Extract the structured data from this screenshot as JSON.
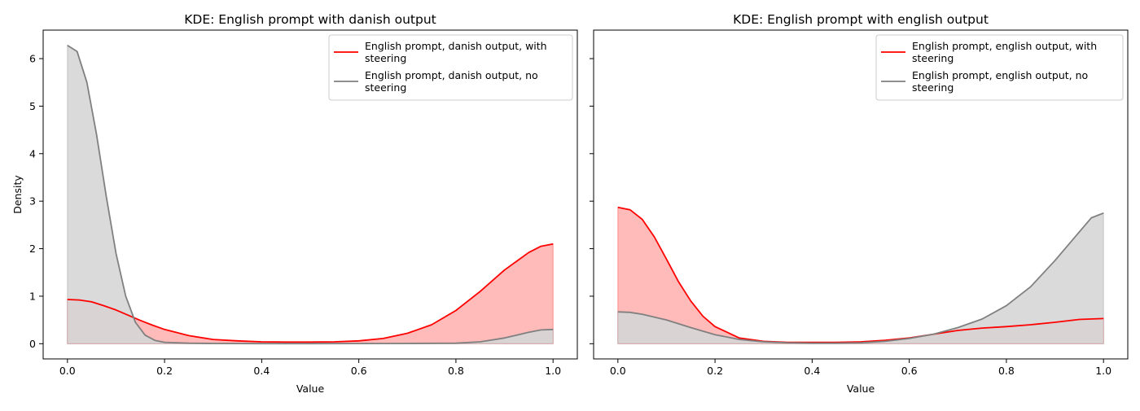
{
  "chart_data": [
    {
      "type": "area",
      "title": "KDE: English prompt with danish output",
      "xlabel": "Value",
      "ylabel": "Density",
      "xlim": [
        -0.05,
        1.05
      ],
      "ylim": [
        -0.32,
        6.6
      ],
      "xticks": [
        "0.0",
        "0.2",
        "0.4",
        "0.6",
        "0.8",
        "1.0"
      ],
      "yticks": [
        "0",
        "1",
        "2",
        "3",
        "4",
        "5",
        "6"
      ],
      "legend_position": "top-right",
      "series": [
        {
          "name": "English prompt, danish output, with steering",
          "line_color": "#ff0000",
          "fill_color": "#ffb3b3",
          "x": [
            0,
            0.025,
            0.05,
            0.075,
            0.1,
            0.125,
            0.15,
            0.175,
            0.2,
            0.25,
            0.3,
            0.35,
            0.4,
            0.45,
            0.5,
            0.55,
            0.6,
            0.65,
            0.7,
            0.75,
            0.8,
            0.85,
            0.9,
            0.95,
            0.975,
            1.0
          ],
          "y": [
            0.93,
            0.92,
            0.88,
            0.8,
            0.71,
            0.6,
            0.49,
            0.39,
            0.3,
            0.17,
            0.09,
            0.06,
            0.04,
            0.035,
            0.035,
            0.04,
            0.06,
            0.11,
            0.22,
            0.4,
            0.7,
            1.1,
            1.55,
            1.92,
            2.05,
            2.1
          ]
        },
        {
          "name": "English prompt, danish output, no steering",
          "line_color": "#808080",
          "fill_color": "#d6d6d6",
          "x": [
            0,
            0.02,
            0.04,
            0.06,
            0.08,
            0.1,
            0.12,
            0.14,
            0.16,
            0.18,
            0.2,
            0.25,
            0.3,
            0.4,
            0.5,
            0.6,
            0.7,
            0.8,
            0.85,
            0.9,
            0.95,
            0.975,
            1.0
          ],
          "y": [
            6.28,
            6.15,
            5.5,
            4.4,
            3.1,
            1.9,
            1.0,
            0.45,
            0.18,
            0.07,
            0.03,
            0.01,
            0.005,
            0.002,
            0.002,
            0.003,
            0.005,
            0.01,
            0.04,
            0.12,
            0.24,
            0.29,
            0.3
          ]
        }
      ]
    },
    {
      "type": "area",
      "title": "KDE: English prompt with english output",
      "xlabel": "Value",
      "ylabel": "",
      "xlim": [
        -0.05,
        1.05
      ],
      "ylim": [
        -0.32,
        6.6
      ],
      "xticks": [
        "0.0",
        "0.2",
        "0.4",
        "0.6",
        "0.8",
        "1.0"
      ],
      "legend_position": "top-right",
      "series": [
        {
          "name": "English prompt, english output, with steering",
          "line_color": "#ff0000",
          "fill_color": "#ffb3b3",
          "x": [
            0,
            0.025,
            0.05,
            0.075,
            0.1,
            0.125,
            0.15,
            0.175,
            0.2,
            0.25,
            0.3,
            0.35,
            0.4,
            0.45,
            0.5,
            0.55,
            0.6,
            0.65,
            0.7,
            0.75,
            0.8,
            0.85,
            0.9,
            0.95,
            1.0
          ],
          "y": [
            2.87,
            2.82,
            2.62,
            2.25,
            1.78,
            1.3,
            0.9,
            0.58,
            0.36,
            0.12,
            0.05,
            0.03,
            0.03,
            0.03,
            0.04,
            0.07,
            0.12,
            0.2,
            0.28,
            0.33,
            0.36,
            0.4,
            0.45,
            0.51,
            0.53
          ]
        },
        {
          "name": "English prompt, english output, no steering",
          "line_color": "#808080",
          "fill_color": "#d6d6d6",
          "x": [
            0,
            0.025,
            0.05,
            0.1,
            0.15,
            0.2,
            0.25,
            0.3,
            0.35,
            0.4,
            0.45,
            0.5,
            0.55,
            0.6,
            0.65,
            0.7,
            0.75,
            0.8,
            0.85,
            0.9,
            0.95,
            0.975,
            1.0
          ],
          "y": [
            0.67,
            0.66,
            0.62,
            0.5,
            0.34,
            0.19,
            0.09,
            0.04,
            0.02,
            0.01,
            0.01,
            0.02,
            0.05,
            0.11,
            0.2,
            0.34,
            0.52,
            0.8,
            1.2,
            1.75,
            2.35,
            2.65,
            2.75
          ]
        }
      ]
    }
  ]
}
